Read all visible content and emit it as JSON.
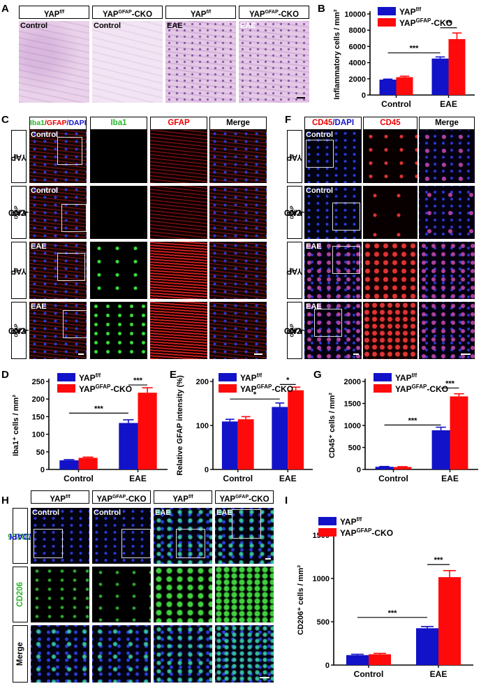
{
  "panels": {
    "A": {
      "label": "A",
      "headers": [
        {
          "base": "YAP",
          "sup": "f/f",
          "rest": ""
        },
        {
          "base": "YAP",
          "sup": "GFAP",
          "rest": "-CKO"
        },
        {
          "base": "YAP",
          "sup": "f/f",
          "rest": ""
        },
        {
          "base": "YAP",
          "sup": "GFAP",
          "rest": "-CKO"
        }
      ],
      "image_labels": [
        "Control",
        "Control",
        "EAE",
        "EAE"
      ]
    },
    "C": {
      "label": "C",
      "stain_title": {
        "p1": "Iba1",
        "p2": "/GFAP",
        "p3": "/DAPI"
      },
      "channel_headers": [
        "Iba1",
        "GFAP",
        "Merge"
      ],
      "row_labels": [
        {
          "base": "YAP",
          "sup": "f/f",
          "rest": ""
        },
        {
          "base": "YAP",
          "sup": "GFAP",
          "rest": "-CKO"
        },
        {
          "base": "YAP",
          "sup": "f/f",
          "rest": ""
        },
        {
          "base": "YAP",
          "sup": "GFAP",
          "rest": "-CKO"
        }
      ],
      "image_labels": [
        "Control",
        "Control",
        "EAE",
        "EAE"
      ]
    },
    "F": {
      "label": "F",
      "stain_title": {
        "p1": "CD45",
        "p2": "/DAPI"
      },
      "channel_headers": [
        "CD45",
        "Merge"
      ],
      "row_labels": [
        {
          "base": "YAP",
          "sup": "f/f",
          "rest": ""
        },
        {
          "base": "YAP",
          "sup": "GFAP",
          "rest": "-CKO"
        },
        {
          "base": "YAP",
          "sup": "f/f",
          "rest": ""
        },
        {
          "base": "YAP",
          "sup": "GFAP",
          "rest": "-CKO"
        }
      ],
      "image_labels": [
        "Control",
        "Control",
        "EAE",
        "EAE"
      ]
    },
    "H": {
      "label": "H",
      "headers": [
        {
          "base": "YAP",
          "sup": "f/f",
          "rest": ""
        },
        {
          "base": "YAP",
          "sup": "GFAP",
          "rest": "-CKO"
        },
        {
          "base": "YAP",
          "sup": "f/f",
          "rest": ""
        },
        {
          "base": "YAP",
          "sup": "GFAP",
          "rest": "-CKO"
        }
      ],
      "row_titles": {
        "r1a": "CD206",
        "r1b": "/DAPI",
        "r2": "CD206",
        "r3": "Merge"
      },
      "image_labels": [
        "Control",
        "Control",
        "EAE",
        "EAE"
      ]
    }
  },
  "colors": {
    "ff": "#1212c8",
    "cko": "#ff0a0a"
  },
  "chart_data": [
    {
      "id": "B",
      "type": "bar",
      "label": "B",
      "categories": [
        "Control",
        "EAE"
      ],
      "series": [
        {
          "name": "YAP",
          "name_sup": "f/f",
          "name_rest": "",
          "values": [
            1900,
            4500
          ],
          "errors": [
            60,
            200
          ]
        },
        {
          "name": "YAP",
          "name_sup": "GFAP",
          "name_rest": "-CKO",
          "values": [
            2200,
            6900
          ],
          "errors": [
            120,
            750
          ]
        }
      ],
      "ylabel": "Inflammatory cells / mm²",
      "ylim": [
        0,
        10000
      ],
      "yticks": [
        0,
        2000,
        4000,
        6000,
        8000,
        10000
      ],
      "significance": [
        {
          "from": [
            0,
            0
          ],
          "to": [
            1,
            0
          ],
          "label": "***",
          "y": 5200
        },
        {
          "from": [
            1,
            0
          ],
          "to": [
            1,
            1
          ],
          "label": "**",
          "y": 8300
        }
      ]
    },
    {
      "id": "D",
      "type": "bar",
      "label": "D",
      "categories": [
        "Control",
        "EAE"
      ],
      "series": [
        {
          "name": "YAP",
          "name_sup": "f/f",
          "name_rest": "",
          "values": [
            26,
            132
          ],
          "errors": [
            2,
            9
          ]
        },
        {
          "name": "YAP",
          "name_sup": "GFAP",
          "name_rest": "-CKO",
          "values": [
            33,
            218
          ],
          "errors": [
            2,
            14
          ]
        }
      ],
      "ylabel": "Iba1⁺ cells / mm²",
      "ylim": [
        0,
        250
      ],
      "yticks": [
        0,
        50,
        100,
        150,
        200,
        250
      ],
      "significance": [
        {
          "from": [
            0,
            0
          ],
          "to": [
            1,
            0
          ],
          "label": "***",
          "y": 160
        },
        {
          "from": [
            1,
            0
          ],
          "to": [
            1,
            1
          ],
          "label": "***",
          "y": 240
        }
      ]
    },
    {
      "id": "E",
      "type": "bar",
      "label": "E",
      "categories": [
        "Control",
        "EAE"
      ],
      "series": [
        {
          "name": "YAP",
          "name_sup": "f/f",
          "name_rest": "",
          "values": [
            109,
            142
          ],
          "errors": [
            5,
            9
          ]
        },
        {
          "name": "YAP",
          "name_sup": "GFAP",
          "name_rest": "-CKO",
          "values": [
            114,
            180
          ],
          "errors": [
            6,
            7
          ]
        }
      ],
      "ylabel": "Relative GFAP intensity (%)",
      "ylim": [
        0,
        200
      ],
      "yticks": [
        0,
        100,
        200
      ],
      "significance": [
        {
          "from": [
            0,
            0
          ],
          "to": [
            1,
            0
          ],
          "label": "*",
          "y": 160
        },
        {
          "from": [
            1,
            0
          ],
          "to": [
            1,
            1
          ],
          "label": "*",
          "y": 193
        }
      ]
    },
    {
      "id": "G",
      "type": "bar",
      "label": "G",
      "categories": [
        "Control",
        "EAE"
      ],
      "series": [
        {
          "name": "YAP",
          "name_sup": "f/f",
          "name_rest": "",
          "values": [
            60,
            890
          ],
          "errors": [
            8,
            70
          ]
        },
        {
          "name": "YAP",
          "name_sup": "GFAP",
          "name_rest": "-CKO",
          "values": [
            55,
            1660
          ],
          "errors": [
            8,
            60
          ]
        }
      ],
      "ylabel": "CD45⁺ cells / mm²",
      "ylim": [
        0,
        2000
      ],
      "yticks": [
        0,
        500,
        1000,
        1500,
        2000
      ],
      "significance": [
        {
          "from": [
            0,
            0
          ],
          "to": [
            1,
            0
          ],
          "label": "***",
          "y": 1010
        },
        {
          "from": [
            1,
            0
          ],
          "to": [
            1,
            1
          ],
          "label": "***",
          "y": 1850
        }
      ]
    },
    {
      "id": "I",
      "type": "bar",
      "label": "I",
      "categories": [
        "Control",
        "EAE"
      ],
      "series": [
        {
          "name": "YAP",
          "name_sup": "f/f",
          "name_rest": "",
          "values": [
            115,
            425
          ],
          "errors": [
            10,
            20
          ]
        },
        {
          "name": "YAP",
          "name_sup": "GFAP",
          "name_rest": "-CKO",
          "values": [
            125,
            1015
          ],
          "errors": [
            10,
            75
          ]
        }
      ],
      "ylabel": "CD206⁺ cells / mm²",
      "ylim": [
        0,
        1500
      ],
      "yticks": [
        0,
        500,
        1000,
        1500
      ],
      "significance": [
        {
          "from": [
            0,
            0
          ],
          "to": [
            1,
            0
          ],
          "label": "***",
          "y": 550
        },
        {
          "from": [
            1,
            0
          ],
          "to": [
            1,
            1
          ],
          "label": "***",
          "y": 1160
        }
      ]
    }
  ]
}
